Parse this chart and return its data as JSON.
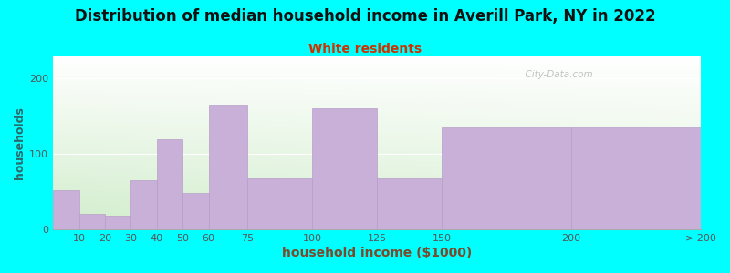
{
  "title": "Distribution of median household income in Averill Park, NY in 2022",
  "subtitle": "White residents",
  "xlabel": "household income ($1000)",
  "ylabel": "households",
  "background_color": "#00FFFF",
  "plot_bg_top": "#d4edcc",
  "plot_bg_bottom": "#f8fff8",
  "bar_color": "#c8b0d8",
  "bar_edge_color": "#b89ec8",
  "bin_edges": [
    0,
    10,
    20,
    30,
    40,
    50,
    60,
    75,
    100,
    125,
    150,
    200,
    250
  ],
  "tick_labels": [
    "10",
    "20",
    "30",
    "40",
    "50",
    "60",
    "75",
    "100",
    "125",
    "150",
    "200",
    "> 200"
  ],
  "tick_positions": [
    10,
    20,
    30,
    40,
    50,
    60,
    75,
    100,
    125,
    150,
    200,
    250
  ],
  "values": [
    52,
    20,
    18,
    65,
    120,
    48,
    165,
    68,
    160,
    68,
    135,
    135
  ],
  "ylim": [
    0,
    230
  ],
  "yticks": [
    0,
    100,
    200
  ],
  "watermark": "  City-Data.com",
  "title_fontsize": 12,
  "subtitle_fontsize": 10,
  "subtitle_color": "#cc3300",
  "xlabel_color": "#7a4a2a",
  "ylabel_color": "#2a6a6a",
  "xlabel_fontsize": 10,
  "ylabel_fontsize": 9,
  "tick_fontsize": 8
}
